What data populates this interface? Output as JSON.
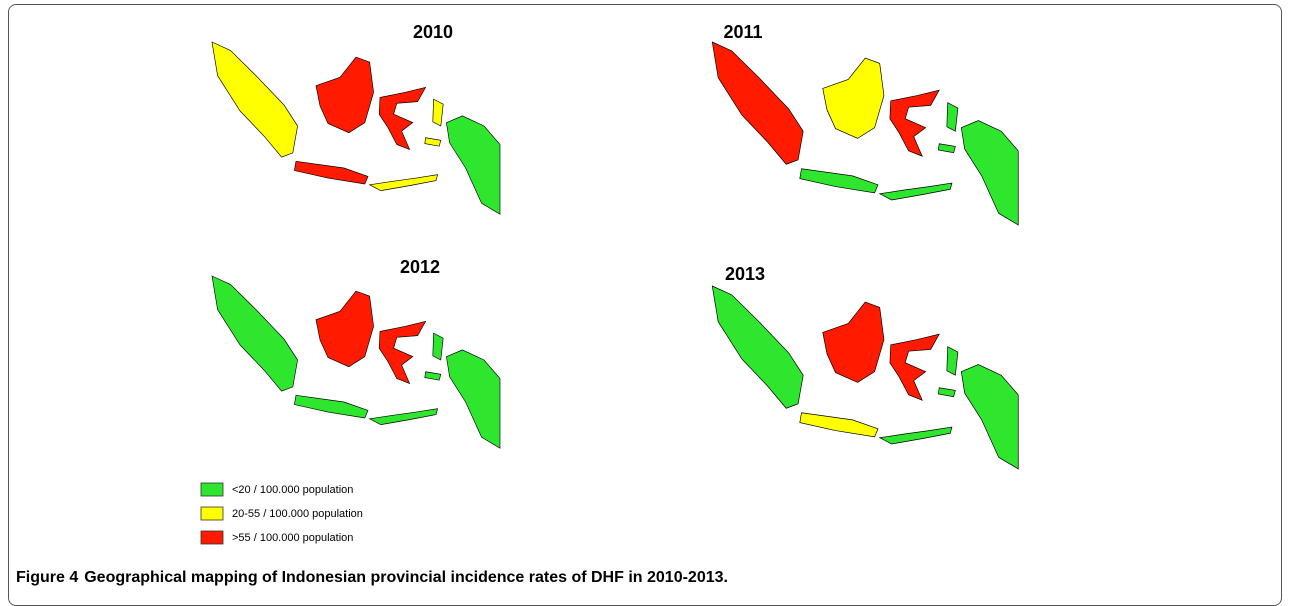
{
  "panels": [
    {
      "title": "2010"
    },
    {
      "title": "2011"
    },
    {
      "title": "2012"
    },
    {
      "title": "2013"
    }
  ],
  "legend": {
    "items": [
      {
        "label": "<20  / 100.000 population",
        "color": "#2ee62e"
      },
      {
        "label": "20-55  / 100.000 population",
        "color": "#ffff00"
      },
      {
        "label": ">55  / 100.000 population",
        "color": "#ff1a00"
      }
    ]
  },
  "caption": {
    "label": "Figure 4",
    "text": "Geographical mapping of Indonesian provincial incidence rates of DHF in 2010-2013."
  }
}
